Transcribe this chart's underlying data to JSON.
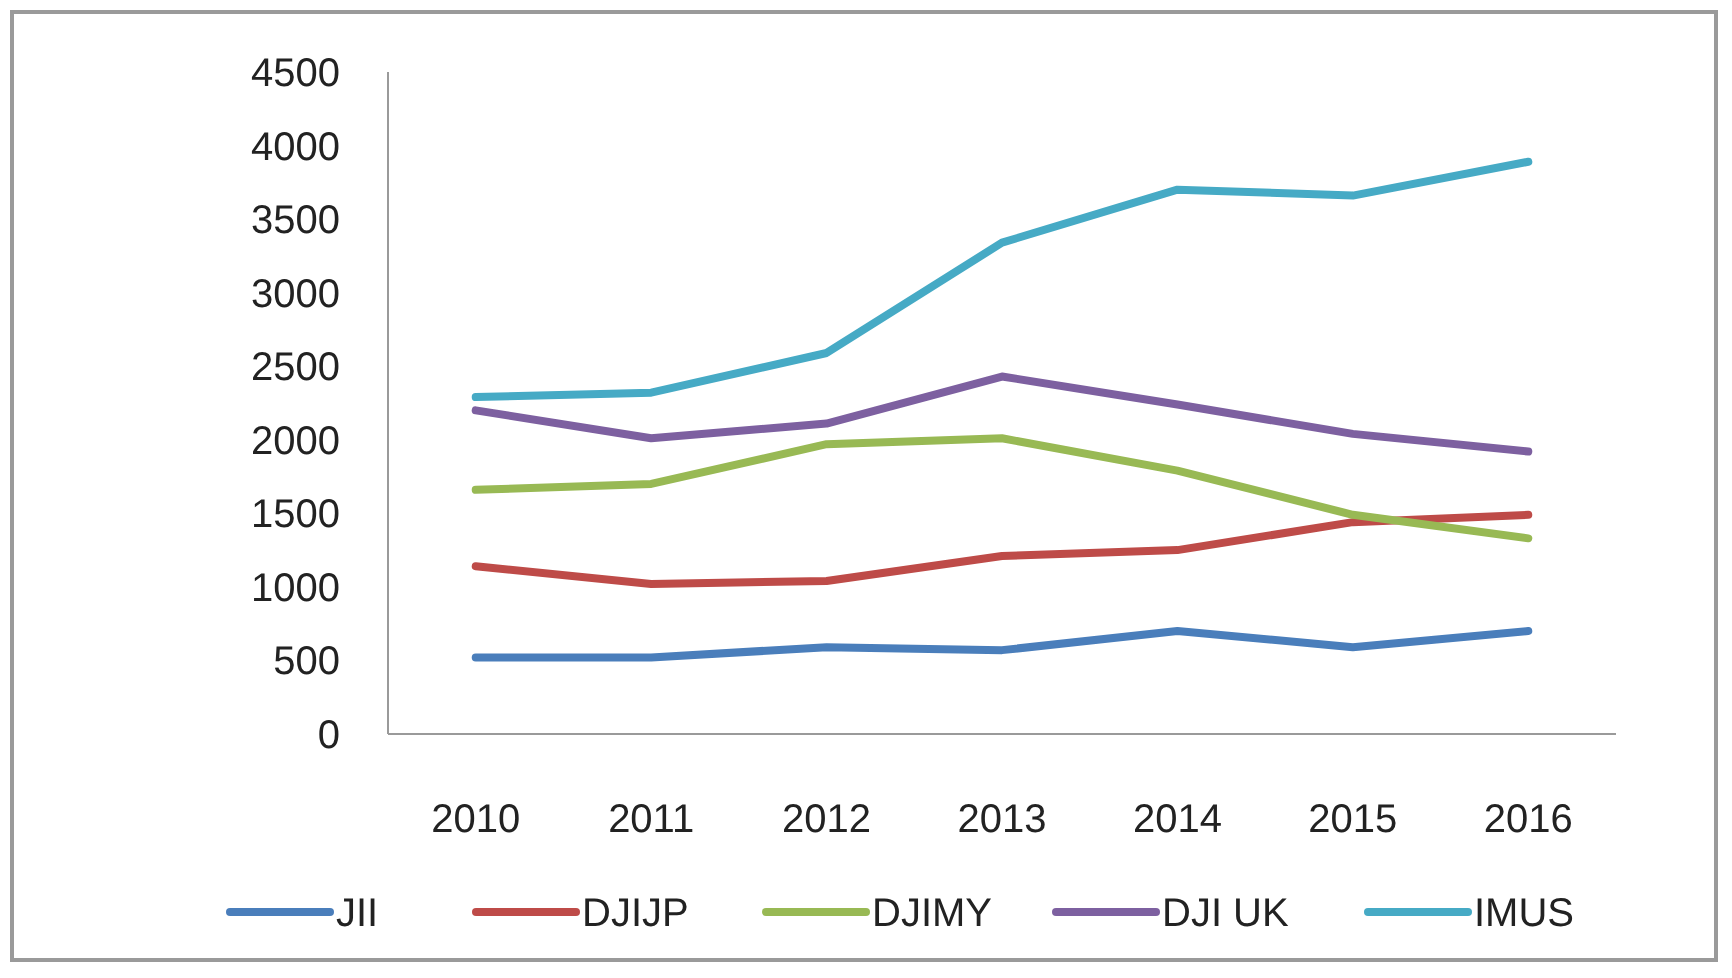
{
  "chart_data": {
    "type": "line",
    "categories": [
      "2010",
      "2011",
      "2012",
      "2013",
      "2014",
      "2015",
      "2016"
    ],
    "series": [
      {
        "name": "JII",
        "color": "#4a7ebb",
        "values": [
          520,
          520,
          590,
          570,
          700,
          590,
          700
        ]
      },
      {
        "name": "DJIJP",
        "color": "#be4b48",
        "values": [
          1140,
          1020,
          1040,
          1210,
          1250,
          1440,
          1490
        ]
      },
      {
        "name": "DJIMY",
        "color": "#98b954",
        "values": [
          1660,
          1700,
          1970,
          2010,
          1790,
          1490,
          1330
        ]
      },
      {
        "name": "DJI UK",
        "color": "#7d60a0",
        "values": [
          2200,
          2010,
          2110,
          2430,
          2240,
          2040,
          1920
        ]
      },
      {
        "name": "IMUS",
        "color": "#46aac5",
        "values": [
          2290,
          2320,
          2590,
          3340,
          3700,
          3660,
          3890
        ]
      }
    ],
    "ylim": [
      0,
      4500
    ],
    "yticks": [
      0,
      500,
      1000,
      1500,
      2000,
      2500,
      3000,
      3500,
      4000,
      4500
    ],
    "grid": false,
    "legend": "bottom",
    "marker": "none",
    "line_style": "solid"
  }
}
